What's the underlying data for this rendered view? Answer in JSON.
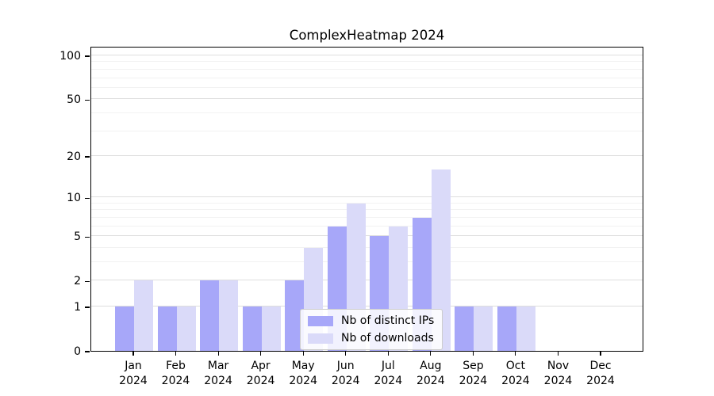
{
  "title": "ComplexHeatmap 2024",
  "chart_data": {
    "type": "bar",
    "title": "ComplexHeatmap 2024",
    "categories": [
      {
        "month": "Jan",
        "year": "2024"
      },
      {
        "month": "Feb",
        "year": "2024"
      },
      {
        "month": "Mar",
        "year": "2024"
      },
      {
        "month": "Apr",
        "year": "2024"
      },
      {
        "month": "May",
        "year": "2024"
      },
      {
        "month": "Jun",
        "year": "2024"
      },
      {
        "month": "Jul",
        "year": "2024"
      },
      {
        "month": "Aug",
        "year": "2024"
      },
      {
        "month": "Sep",
        "year": "2024"
      },
      {
        "month": "Oct",
        "year": "2024"
      },
      {
        "month": "Nov",
        "year": "2024"
      },
      {
        "month": "Dec",
        "year": "2024"
      }
    ],
    "series": [
      {
        "name": "Nb of distinct IPs",
        "color": "#a7a7f9",
        "values": [
          1,
          1,
          2,
          1,
          2,
          6,
          5,
          7,
          1,
          1,
          0,
          0
        ]
      },
      {
        "name": "Nb of downloads",
        "color": "#dadaf9",
        "values": [
          2,
          1,
          2,
          1,
          4,
          9,
          6,
          16,
          1,
          1,
          0,
          0
        ]
      }
    ],
    "xlabel": "",
    "ylabel": "",
    "yscale": "log1p",
    "yticks": [
      0,
      1,
      2,
      5,
      10,
      20,
      50,
      100
    ],
    "minor_yticks": [
      3,
      4,
      6,
      7,
      8,
      9,
      30,
      40,
      60,
      70,
      80,
      90
    ],
    "ylim": [
      0,
      116
    ],
    "grid": "both",
    "legend_position": "lower center",
    "colors": {
      "major_grid": "#dedede",
      "minor_grid": "#f2f2f2",
      "frame": "#000000",
      "text": "#000000"
    }
  }
}
